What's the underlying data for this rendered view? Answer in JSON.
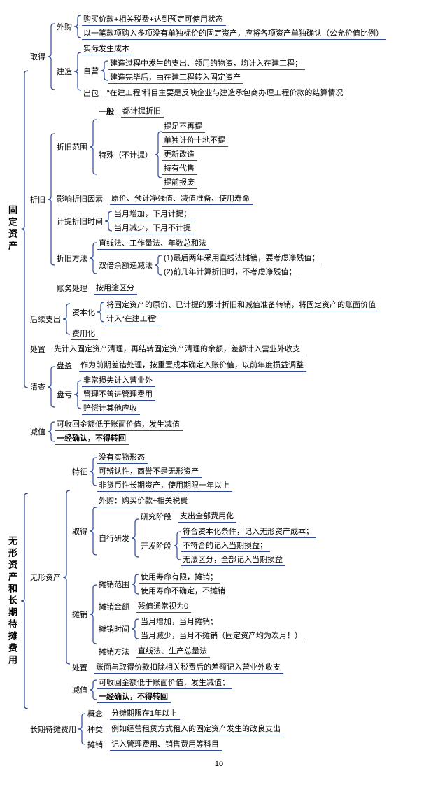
{
  "page_number": "10",
  "brace_color": "#2e4a9a",
  "underline_color": "#2e4a9a",
  "roots": {
    "fixed": "固定资产",
    "intangible": "无形资产和长期待摊费用"
  },
  "f": {
    "obtain": "取得",
    "obtain_ext": "外购",
    "obtain_ext_1": "购买价款+相关税费+达到预定可使用状态",
    "obtain_ext_2": "以一笔款项购入多项没有单独标价的固定资产，应将各项资产单独确认（公允价值比例）",
    "obtain_build": "建造",
    "obtain_build_top": "实际发生成本",
    "obtain_self": "自营",
    "obtain_self_1": "建造过程中发生的支出、领用的物资，均计入在建工程；",
    "obtain_self_2": "建造完毕后，由在建工程转入固定资产",
    "obtain_out": "出包",
    "obtain_out_1": "“在建工程”科目主要是反映企业与建造承包商办理工程价款的结算情况",
    "dep": "折旧",
    "dep_scope": "折旧范围",
    "dep_scope_gen": "一般",
    "dep_scope_gen_1": "都计提折旧",
    "dep_scope_sp": "特殊（不计提）",
    "dep_scope_sp_1": "提足不再提",
    "dep_scope_sp_2": "单独计价土地不提",
    "dep_scope_sp_3": "更新改造",
    "dep_scope_sp_4": "持有代售",
    "dep_scope_sp_5": "提前报废",
    "dep_factor": "影响折旧因素",
    "dep_factor_1": "原价、预计净残值、减值准备、使用寿命",
    "dep_time": "计提折旧时间",
    "dep_time_1": "当月增加，下月计提；",
    "dep_time_2": "当月减少，下月不计提",
    "dep_method": "折旧方法",
    "dep_method_1": "直线法、工作量法、年数总和法",
    "dep_method_d": "双倍余额递减法",
    "dep_method_d_1": "(1)最后两年采用直线法摊销，要考虑净残值；",
    "dep_method_d_2": "(2)前几年计算折旧时，不考虑净残值；",
    "dep_acct": "账务处理",
    "dep_acct_1": "按用途区分",
    "follow": "后续支出",
    "follow_cap": "资本化",
    "follow_cap_1": "将固定资产的原价、已计提的累计折旧和减值准备转销，将固定资产的账面价值",
    "follow_cap_2": "计入“在建工程”",
    "follow_exp": "费用化",
    "dispose": "处置",
    "dispose_1": "先计入固定资产清理，再结转固定资产清理的余额，差额计入营业外收支",
    "check": "清查",
    "check_gain": "盘盈",
    "check_gain_1": "作为前期差错处理，按重置成本确定入账价值，以前年度损益调整",
    "check_loss": "盘亏",
    "check_loss_1": "非常损失计入营业外",
    "check_loss_2": "管理不善进管理费用",
    "check_loss_3": "赔偿计其他应收",
    "impair": "减值",
    "impair_1": "可收回金额低于账面价值，发生减值",
    "impair_2": "一经确认，不得转回"
  },
  "i": {
    "ia": "无形资产",
    "feature": "特征",
    "feature_1": "没有实物形态",
    "feature_2": "可辨认性，商誉不是无形资产",
    "feature_3": "非货币性长期资产，使用期限一年以上",
    "obtain": "取得",
    "obtain_1": "外购：购买价款+相关税费",
    "obtain_self": "自行研发",
    "obtain_r": "研究阶段",
    "obtain_r_1": "支出全部费用化",
    "obtain_d": "开发阶段",
    "obtain_d_1": "符合资本化条件，记入无形资产成本；",
    "obtain_d_2": "不符合的记入当期损益；",
    "obtain_d_3": "无法区分，全部记入当期损益",
    "amort": "摊销",
    "amort_scope": "摊销范围",
    "amort_scope_1": "使用寿命有限，摊销；",
    "amort_scope_2": "使用寿命不确定，不摊销",
    "amort_amt": "摊销金额",
    "amort_amt_1": "残值通常视为0",
    "amort_time": "摊销时间",
    "amort_time_1": "当月增加，当月摊销；",
    "amort_time_2": "当月减少，当月不摊销（固定资产均为次月！）",
    "amort_method": "摊销方法",
    "amort_method_1": "直线法、生产总量法",
    "dispose": "处置",
    "dispose_1": "账面与取得价款扣除相关税费后的差额记入营业外收支",
    "impair": "减值",
    "impair_1": "可收回金额低于账面价值，发生减值；",
    "impair_2": "一经确认，不得转回",
    "lta": "长期待摊费用",
    "lta_c": "概念",
    "lta_c_1": "分摊期限在1年以上",
    "lta_t": "种类",
    "lta_t_1": "例如经营租赁方式租入的固定资产发生的改良支出",
    "lta_a": "摊销",
    "lta_a_1": "记入管理费用、销售费用等科目"
  }
}
